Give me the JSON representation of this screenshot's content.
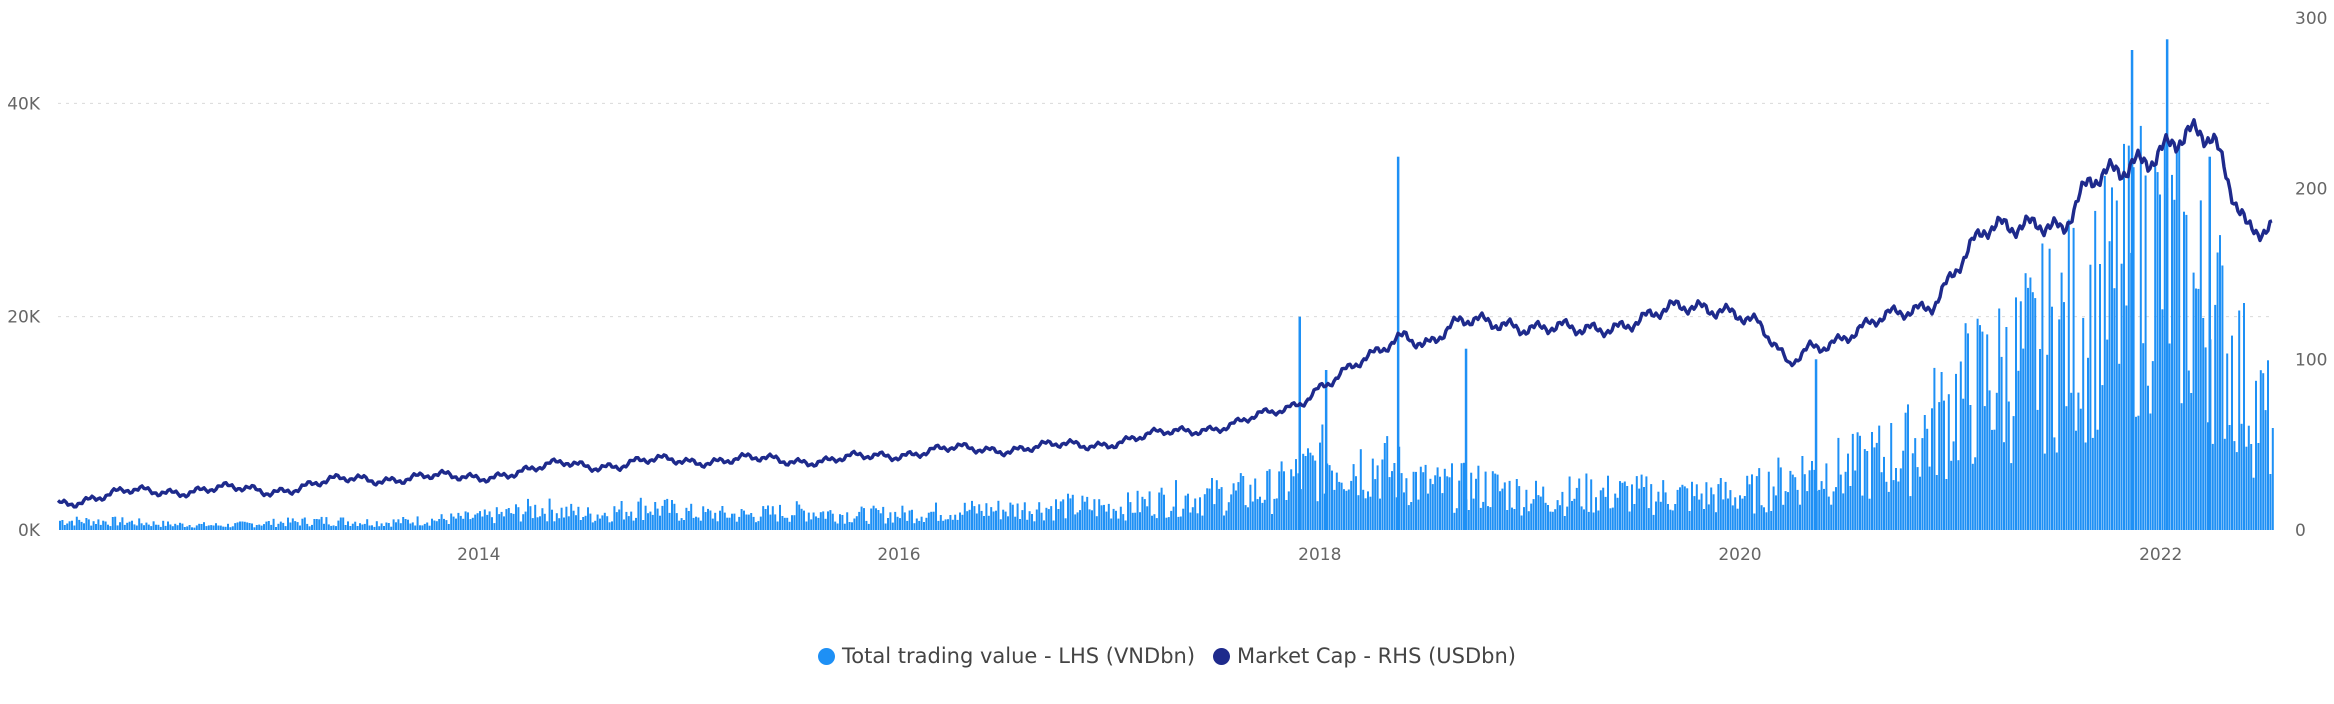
{
  "chart_data": {
    "type": "bar+line",
    "x_axis": {
      "type": "date",
      "range": [
        "2012-01-01",
        "2022-07-15"
      ],
      "tick_labels": [
        "2014",
        "2016",
        "2018",
        "2020",
        "2022"
      ]
    },
    "y_left": {
      "range": [
        0,
        48000
      ],
      "tick_labels": [
        "0K",
        "20K",
        "40K"
      ],
      "tick_values": [
        0,
        20000,
        40000
      ]
    },
    "y_right": {
      "range": [
        0,
        300
      ],
      "tick_labels": [
        "0",
        "100",
        "200",
        "300"
      ],
      "tick_values": [
        0,
        100,
        200,
        300
      ]
    },
    "grid": "horizontal dotted",
    "legend_position": "bottom-center",
    "series": [
      {
        "name": "Total trading value - LHS (VNDbn)",
        "type": "bar",
        "axis": "left",
        "color": "#1E90F5",
        "points": [
          [
            "2012-01",
            1000
          ],
          [
            "2012-04",
            900
          ],
          [
            "2012-07",
            600
          ],
          [
            "2012-10",
            500
          ],
          [
            "2013-01",
            800
          ],
          [
            "2013-04",
            1000
          ],
          [
            "2013-07",
            800
          ],
          [
            "2013-10",
            1100
          ],
          [
            "2014-01",
            1400
          ],
          [
            "2014-04",
            2300
          ],
          [
            "2014-07",
            1600
          ],
          [
            "2014-10",
            2500
          ],
          [
            "2015-01",
            1700
          ],
          [
            "2015-04",
            1600
          ],
          [
            "2015-07",
            2000
          ],
          [
            "2015-10",
            1600
          ],
          [
            "2016-01",
            1700
          ],
          [
            "2016-04",
            2100
          ],
          [
            "2016-07",
            2200
          ],
          [
            "2016-10",
            2500
          ],
          [
            "2017-01",
            2400
          ],
          [
            "2017-04",
            3300
          ],
          [
            "2017-07",
            3700
          ],
          [
            "2017-10",
            4300
          ],
          [
            "2018-01",
            7500
          ],
          [
            "2018-04",
            6800
          ],
          [
            "2018-07",
            4500
          ],
          [
            "2018-10",
            4600
          ],
          [
            "2019-01",
            3500
          ],
          [
            "2019-04",
            3900
          ],
          [
            "2019-07",
            3800
          ],
          [
            "2019-10",
            3600
          ],
          [
            "2020-01",
            3800
          ],
          [
            "2020-04",
            6000
          ],
          [
            "2020-07",
            6500
          ],
          [
            "2020-10",
            8500
          ],
          [
            "2021-01",
            14000
          ],
          [
            "2021-04",
            17000
          ],
          [
            "2021-07",
            21000
          ],
          [
            "2021-10",
            25000
          ],
          [
            "2021-12",
            30000
          ],
          [
            "2022-02",
            26000
          ],
          [
            "2022-04",
            21000
          ],
          [
            "2022-06",
            13000
          ],
          [
            "2022-07",
            11000
          ]
        ],
        "spikes": [
          [
            "2017-11-25",
            20000
          ],
          [
            "2018-01-10",
            15000
          ],
          [
            "2018-05-15",
            35000
          ],
          [
            "2018-09-10",
            17000
          ],
          [
            "2020-05-10",
            16000
          ],
          [
            "2021-11-10",
            45000
          ],
          [
            "2022-01-10",
            46000
          ],
          [
            "2022-03-25",
            35000
          ]
        ]
      },
      {
        "name": "Market Cap -  RHS (USDbn)",
        "type": "line",
        "axis": "right",
        "color": "#1E2A8C",
        "points": [
          [
            "2012-01-01",
            16
          ],
          [
            "2012-05-01",
            22
          ],
          [
            "2012-10-01",
            24
          ],
          [
            "2013-01-01",
            23
          ],
          [
            "2013-06-01",
            30
          ],
          [
            "2013-12-01",
            31
          ],
          [
            "2014-04-01",
            34
          ],
          [
            "2014-06-01",
            40
          ],
          [
            "2014-09-01",
            37
          ],
          [
            "2014-12-01",
            42
          ],
          [
            "2015-03-01",
            40
          ],
          [
            "2015-06-01",
            42
          ],
          [
            "2015-09-01",
            40
          ],
          [
            "2015-12-01",
            44
          ],
          [
            "2016-04-01",
            47
          ],
          [
            "2016-08-01",
            48
          ],
          [
            "2016-12-01",
            50
          ],
          [
            "2017-04-01",
            56
          ],
          [
            "2017-08-01",
            62
          ],
          [
            "2017-11-01",
            70
          ],
          [
            "2017-12-01",
            76
          ],
          [
            "2018-01-01",
            85
          ],
          [
            "2018-04-01",
            100
          ],
          [
            "2018-06-01",
            117
          ],
          [
            "2018-07-01",
            110
          ],
          [
            "2018-09-01",
            120
          ],
          [
            "2018-12-01",
            122
          ],
          [
            "2019-04-01",
            115
          ],
          [
            "2019-07-01",
            124
          ],
          [
            "2019-12-01",
            132
          ],
          [
            "2020-01-01",
            128
          ],
          [
            "2020-02-01",
            120
          ],
          [
            "2020-03-25",
            95
          ],
          [
            "2020-05-01",
            108
          ],
          [
            "2020-08-01",
            117
          ],
          [
            "2020-12-01",
            135
          ],
          [
            "2021-01-15",
            155
          ],
          [
            "2021-03-01",
            172
          ],
          [
            "2021-06-01",
            185
          ],
          [
            "2021-07-15",
            175
          ],
          [
            "2021-09-01",
            200
          ],
          [
            "2021-11-15",
            220
          ],
          [
            "2022-01-01",
            222
          ],
          [
            "2022-03-10",
            228
          ],
          [
            "2022-04-01",
            230
          ],
          [
            "2022-05-15",
            195
          ],
          [
            "2022-06-01",
            180
          ],
          [
            "2022-07-15",
            175
          ]
        ]
      }
    ]
  }
}
